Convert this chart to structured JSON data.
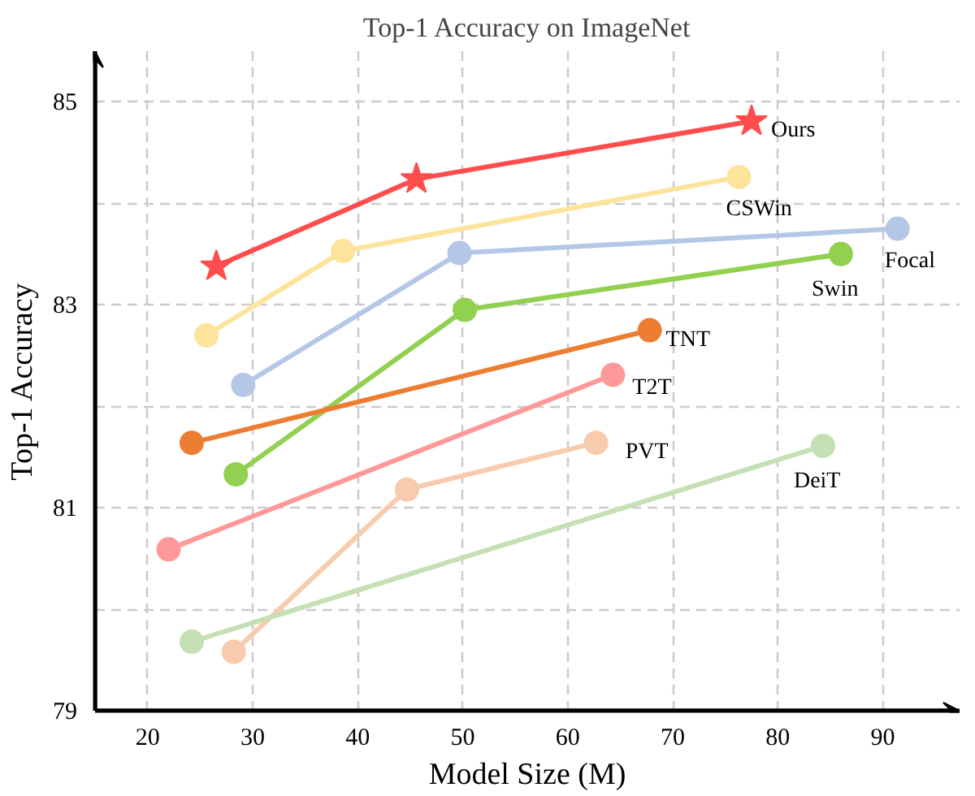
{
  "chart_data": {
    "type": "line",
    "title": "Top-1 Accuracy on ImageNet",
    "xlabel": "Model Size (M)",
    "ylabel": "Top-1 Accuracy",
    "xlim": [
      15,
      97.3
    ],
    "ylim": [
      79,
      85.5
    ],
    "xticks": [
      20,
      30,
      40,
      50,
      60,
      70,
      80,
      90
    ],
    "yticks": [
      79,
      {
        "value": 80,
        "label": null
      },
      81,
      {
        "value": 82,
        "label": null
      },
      83,
      {
        "value": 84,
        "label": null
      },
      85
    ],
    "grid": true,
    "marker": "circle",
    "line_style": "solid",
    "series": [
      {
        "name": "Ours",
        "color": "#ff4d4d",
        "marker": "star",
        "x": [
          26.55,
          45.6,
          77.5
        ],
        "values": [
          83.38,
          84.24,
          84.81
        ]
      },
      {
        "name": "CSWin",
        "color": "#fde49c",
        "x": [
          25.6,
          38.6,
          76.3
        ],
        "values": [
          82.7,
          83.53,
          84.26
        ]
      },
      {
        "name": "Focal",
        "color": "#b4c7e7",
        "x": [
          29.1,
          49.7,
          91.4
        ],
        "values": [
          82.21,
          83.51,
          83.75
        ]
      },
      {
        "name": "Swin",
        "color": "#92d050",
        "x": [
          28.4,
          50.2,
          86.0
        ],
        "values": [
          81.33,
          82.95,
          83.5
        ]
      },
      {
        "name": "TNT",
        "color": "#ed7d31",
        "x": [
          24.2,
          67.8
        ],
        "values": [
          81.64,
          82.75
        ]
      },
      {
        "name": "T2T",
        "color": "#ff9999",
        "x": [
          22.0,
          64.3
        ],
        "values": [
          80.59,
          82.31
        ]
      },
      {
        "name": "PVT",
        "color": "#f8cbad",
        "x": [
          28.2,
          44.7,
          62.7
        ],
        "values": [
          79.58,
          81.18,
          81.64
        ]
      },
      {
        "name": "DeiT",
        "color": "#c5e0b4",
        "x": [
          24.2,
          84.3
        ],
        "values": [
          79.68,
          81.61
        ]
      }
    ]
  }
}
